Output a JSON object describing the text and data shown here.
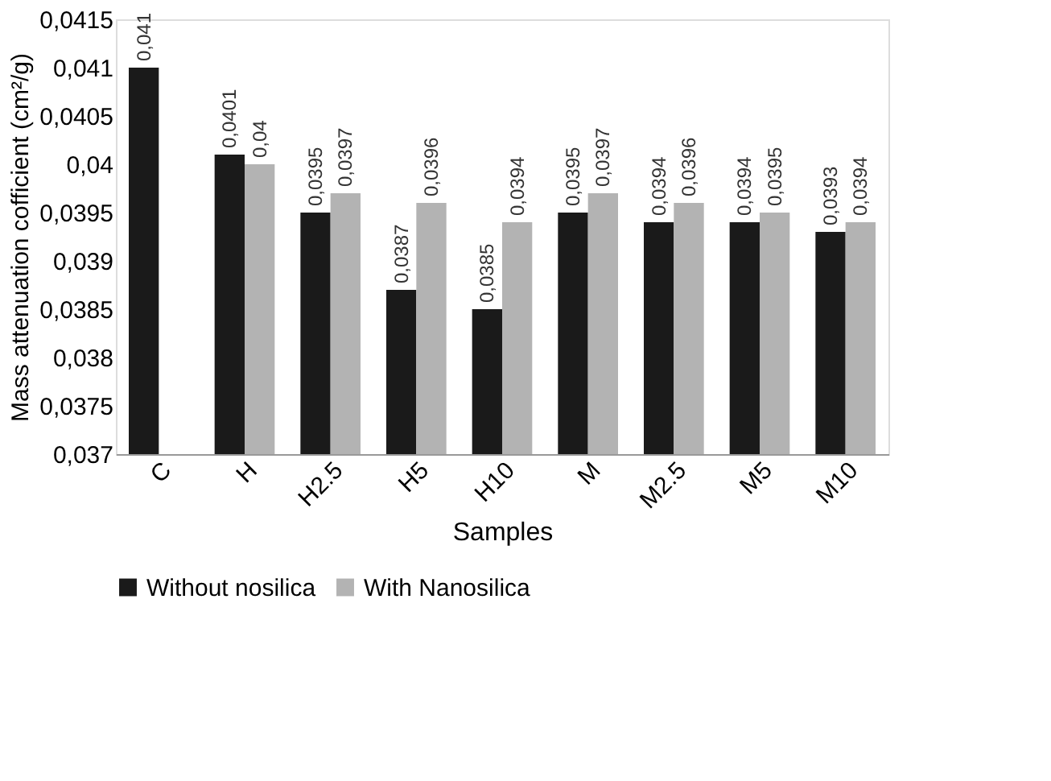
{
  "chart_data": {
    "type": "bar",
    "xlabel": "Samples",
    "ylabel": "Mass attenuation cofficient (cm²/g)",
    "categories": [
      "C",
      "H",
      "H2.5",
      "H5",
      "H10",
      "M",
      "M2.5",
      "M5",
      "M10"
    ],
    "series": [
      {
        "name": "Without nosilica",
        "color": "#1a1a1a",
        "values": [
          0.041,
          0.0401,
          0.0395,
          0.0387,
          0.0385,
          0.0395,
          0.0394,
          0.0394,
          0.0393
        ],
        "value_labels": [
          "0,041",
          "0,0401",
          "0,0395",
          "0,0387",
          "0,0385",
          "0,0395",
          "0,0394",
          "0,0394",
          "0,0393"
        ]
      },
      {
        "name": "With Nanosilica",
        "color": "#b3b3b3",
        "values": [
          null,
          0.04,
          0.0397,
          0.0396,
          0.0394,
          0.0397,
          0.0396,
          0.0395,
          0.0394
        ],
        "value_labels": [
          null,
          "0,04",
          "0,0397",
          "0,0396",
          "0,0394",
          "0,0397",
          "0,0396",
          "0,0395",
          "0,0394"
        ]
      }
    ],
    "ylim": [
      0.037,
      0.0415
    ],
    "yticks": [
      {
        "value": 0.037,
        "label": "0,037"
      },
      {
        "value": 0.0375,
        "label": "0,0375"
      },
      {
        "value": 0.038,
        "label": "0,038"
      },
      {
        "value": 0.0385,
        "label": "0,0385"
      },
      {
        "value": 0.039,
        "label": "0,039"
      },
      {
        "value": 0.0395,
        "label": "0,0395"
      },
      {
        "value": 0.04,
        "label": "0,04"
      },
      {
        "value": 0.0405,
        "label": "0,0405"
      },
      {
        "value": 0.041,
        "label": "0,041"
      },
      {
        "value": 0.0415,
        "label": "0,0415"
      }
    ],
    "grid": false,
    "legend": "bottom"
  }
}
